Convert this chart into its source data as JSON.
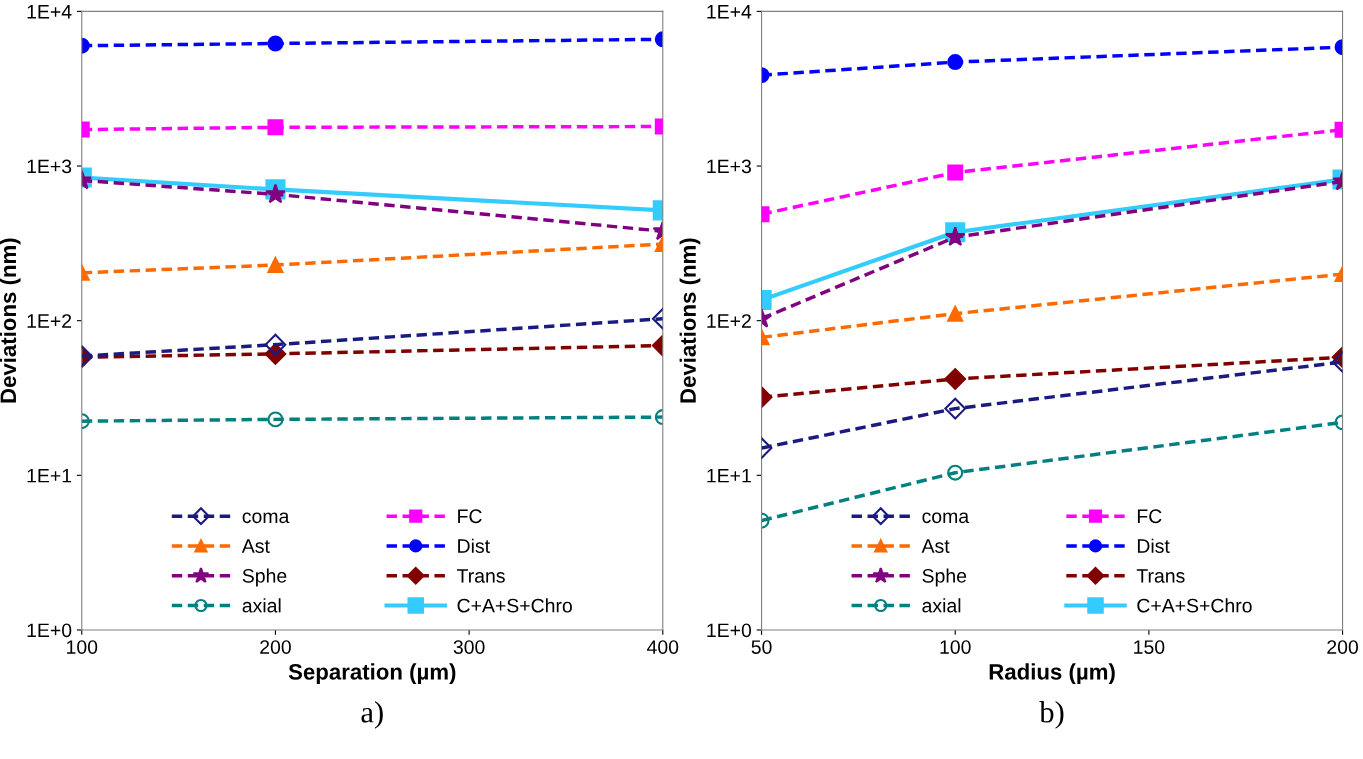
{
  "chart_data": [
    {
      "type": "line",
      "xlabel": "Separation (µm)",
      "ylabel": "Deviations (nm)",
      "log": "y",
      "xlim": [
        100,
        400
      ],
      "xticks": [
        100,
        200,
        300,
        400
      ],
      "ylim": [
        1,
        10000
      ],
      "yticks": [
        {
          "value": 1,
          "label": "1E+0"
        },
        {
          "value": 10,
          "label": "1E+1"
        },
        {
          "value": 100,
          "label": "1E+2"
        },
        {
          "value": 1000,
          "label": "1E+3"
        },
        {
          "value": 10000,
          "label": "1E+4"
        }
      ],
      "grid": false,
      "legend": "bottom",
      "annotations": [
        "a)"
      ],
      "x": [
        100,
        200,
        400
      ],
      "series": [
        {
          "name": "coma",
          "color": "#1a1a80",
          "line_style": "dashed",
          "marker": "diamond-open",
          "values": [
            59,
            70,
            103
          ]
        },
        {
          "name": "FC",
          "color": "#ff00ff",
          "line_style": "dashed",
          "marker": "square",
          "values": [
            1720,
            1780,
            1800
          ]
        },
        {
          "name": "Ast",
          "color": "#ff6a00",
          "line_style": "dashed",
          "marker": "triangle",
          "values": [
            204,
            229,
            313
          ]
        },
        {
          "name": "Dist",
          "color": "#0000ff",
          "line_style": "dashed",
          "marker": "circle",
          "values": [
            6000,
            6200,
            6600
          ]
        },
        {
          "name": "Sphe",
          "color": "#800080",
          "line_style": "dashed",
          "marker": "star",
          "values": [
            807,
            656,
            379
          ]
        },
        {
          "name": "Trans",
          "color": "#800000",
          "line_style": "dashed",
          "marker": "diamond",
          "values": [
            58,
            61,
            69
          ]
        },
        {
          "name": "axial",
          "color": "#008080",
          "line_style": "dashed",
          "marker": "circle-open",
          "values": [
            22.4,
            23,
            23.8
          ]
        },
        {
          "name": "C+A+S+Chro",
          "color": "#33ccff",
          "line_style": "solid",
          "marker": "square",
          "values": [
            843,
            706,
            517
          ]
        }
      ]
    },
    {
      "type": "line",
      "xlabel": "Radius (µm)",
      "ylabel": "Deviations (nm)",
      "log": "y",
      "xlim": [
        50,
        200
      ],
      "xticks": [
        50,
        100,
        150,
        200
      ],
      "ylim": [
        1,
        10000
      ],
      "yticks": [
        {
          "value": 1,
          "label": "1E+0"
        },
        {
          "value": 10,
          "label": "1E+1"
        },
        {
          "value": 100,
          "label": "1E+2"
        },
        {
          "value": 1000,
          "label": "1E+3"
        },
        {
          "value": 10000,
          "label": "1E+4"
        }
      ],
      "grid": false,
      "legend": "bottom",
      "annotations": [
        "b)"
      ],
      "x": [
        50,
        100,
        200
      ],
      "series": [
        {
          "name": "coma",
          "color": "#1a1a80",
          "line_style": "dashed",
          "marker": "diamond-open",
          "values": [
            15,
            27,
            54
          ]
        },
        {
          "name": "FC",
          "color": "#ff00ff",
          "line_style": "dashed",
          "marker": "square",
          "values": [
            488,
            908,
            1717
          ]
        },
        {
          "name": "Ast",
          "color": "#ff6a00",
          "line_style": "dashed",
          "marker": "triangle",
          "values": [
            78,
            111,
            200
          ]
        },
        {
          "name": "Dist",
          "color": "#0000ff",
          "line_style": "dashed",
          "marker": "circle",
          "values": [
            3870,
            4700,
            5870
          ]
        },
        {
          "name": "Sphe",
          "color": "#800080",
          "line_style": "dashed",
          "marker": "star",
          "values": [
            103,
            347,
            795
          ]
        },
        {
          "name": "Trans",
          "color": "#800000",
          "line_style": "dashed",
          "marker": "diamond",
          "values": [
            32,
            42,
            58
          ]
        },
        {
          "name": "axial",
          "color": "#008080",
          "line_style": "dashed",
          "marker": "circle-open",
          "values": [
            5.1,
            10.4,
            22
          ]
        },
        {
          "name": "C+A+S+Chro",
          "color": "#33ccff",
          "line_style": "solid",
          "marker": "square",
          "values": [
            136,
            373,
            818
          ]
        }
      ]
    }
  ]
}
